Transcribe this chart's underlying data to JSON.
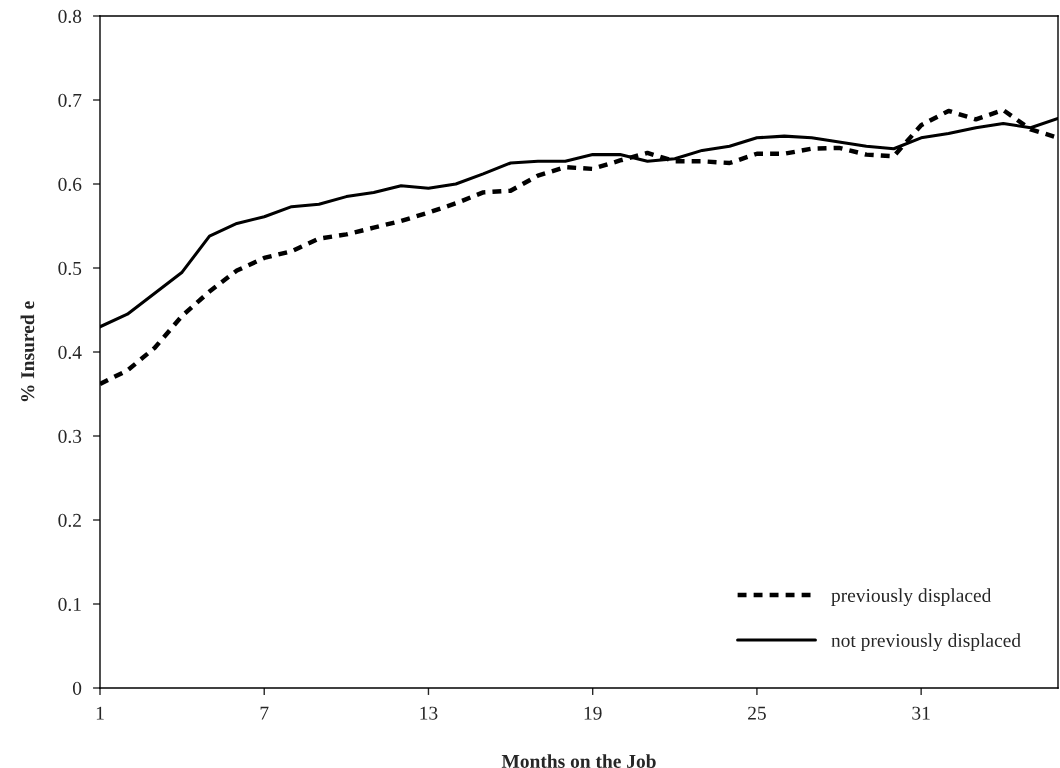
{
  "chart_data": {
    "type": "line",
    "xlabel": "Months on the Job",
    "ylabel": "% Insured e",
    "x": [
      1,
      2,
      3,
      4,
      5,
      6,
      7,
      8,
      9,
      10,
      11,
      12,
      13,
      14,
      15,
      16,
      17,
      18,
      19,
      20,
      21,
      22,
      23,
      24,
      25,
      26,
      27,
      28,
      29,
      30,
      31,
      32,
      33,
      34,
      35,
      36
    ],
    "series": [
      {
        "name": "previously displaced",
        "color": "#000000",
        "line_style": "dotted",
        "values": [
          0.362,
          0.378,
          0.405,
          0.443,
          0.472,
          0.497,
          0.512,
          0.52,
          0.535,
          0.54,
          0.548,
          0.556,
          0.566,
          0.577,
          0.59,
          0.592,
          0.61,
          0.62,
          0.618,
          0.628,
          0.637,
          0.627,
          0.627,
          0.625,
          0.636,
          0.636,
          0.642,
          0.643,
          0.635,
          0.633,
          0.67,
          0.687,
          0.677,
          0.688,
          0.665,
          0.655
        ]
      },
      {
        "name": "not previously displaced",
        "color": "#000000",
        "line_style": "solid",
        "values": [
          0.43,
          0.445,
          0.47,
          0.495,
          0.538,
          0.553,
          0.561,
          0.573,
          0.576,
          0.585,
          0.59,
          0.598,
          0.595,
          0.6,
          0.612,
          0.625,
          0.627,
          0.627,
          0.635,
          0.635,
          0.627,
          0.63,
          0.64,
          0.645,
          0.655,
          0.657,
          0.655,
          0.65,
          0.645,
          0.642,
          0.655,
          0.66,
          0.667,
          0.672,
          0.667,
          0.678
        ]
      }
    ],
    "xlim": [
      1,
      36
    ],
    "xticks": [
      1,
      7,
      13,
      19,
      25,
      31
    ],
    "ylim": [
      0,
      0.8
    ],
    "yticks": [
      0,
      0.1,
      0.2,
      0.3,
      0.4,
      0.5,
      0.6,
      0.7,
      0.8
    ],
    "grid": false,
    "legend": "bottom right",
    "marker": "none"
  }
}
